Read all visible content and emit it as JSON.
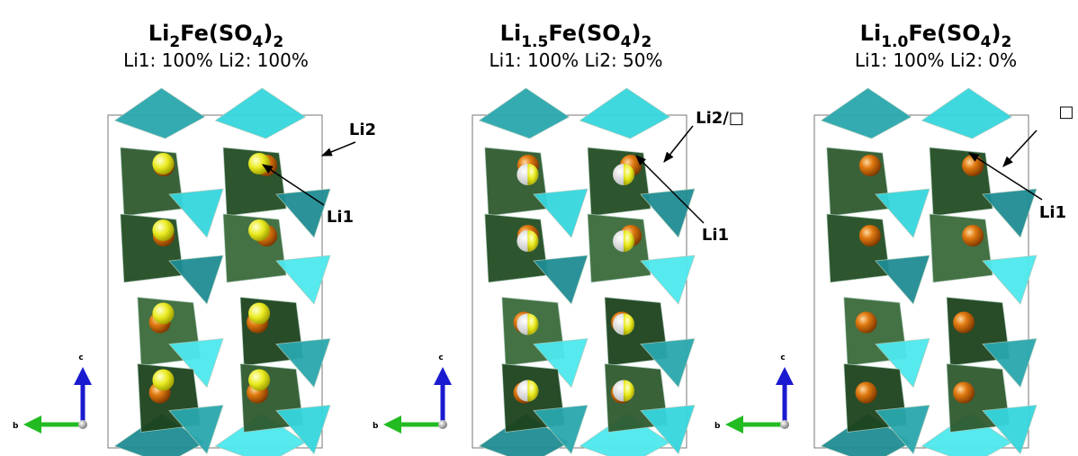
{
  "panels": [
    {
      "title": [
        {
          "text": "Li"
        },
        {
          "text": "2",
          "sub": true
        },
        {
          "text": "Fe(SO"
        },
        {
          "text": "4",
          "sub": true
        },
        {
          "text": ")"
        },
        {
          "text": "2",
          "sub": true
        }
      ],
      "subtitle": "Li1: 100% Li2: 100%",
      "labels": [
        "Li2",
        "Li1"
      ],
      "axis_labels": [
        "c",
        "b"
      ]
    },
    {
      "title": [
        {
          "text": "Li"
        },
        {
          "text": "1.5",
          "sub": true
        },
        {
          "text": "Fe(SO"
        },
        {
          "text": "4",
          "sub": true
        },
        {
          "text": ")"
        },
        {
          "text": "2",
          "sub": true
        }
      ],
      "subtitle": "Li1: 100% Li2: 50%",
      "labels": [
        "Li2/□",
        "Li1"
      ],
      "axis_labels": [
        "c",
        "b"
      ]
    },
    {
      "title": [
        {
          "text": "Li"
        },
        {
          "text": "1.0",
          "sub": true
        },
        {
          "text": "Fe(SO"
        },
        {
          "text": "4",
          "sub": true
        },
        {
          "text": ")"
        },
        {
          "text": "2",
          "sub": true
        }
      ],
      "subtitle": "Li1: 100% Li2: 0%",
      "labels": [
        "□",
        "Li1"
      ],
      "axis_labels": [
        "c",
        "b"
      ]
    }
  ]
}
